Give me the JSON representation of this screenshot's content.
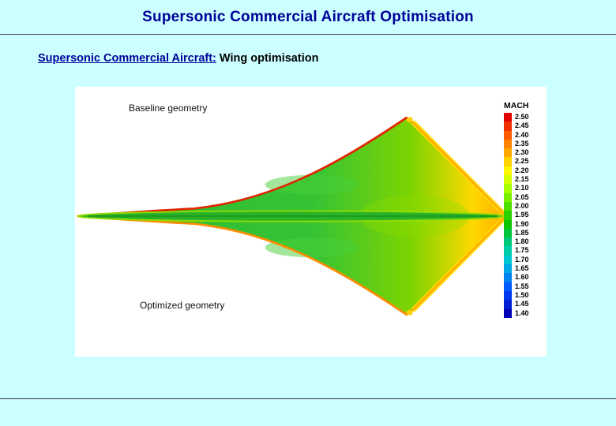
{
  "slide": {
    "title": "Supersonic Commercial Aircraft Optimisation",
    "subtitle": {
      "lead": "Supersonic Commercial Aircraft:",
      "rest": " Wing optimisation"
    }
  },
  "figure": {
    "baseline_label": "Baseline geometry",
    "optimized_label": "Optimized geometry",
    "legend": {
      "title": "MACH",
      "entries": [
        {
          "value": "2.50",
          "color": "#e00000"
        },
        {
          "value": "2.45",
          "color": "#f03000"
        },
        {
          "value": "2.40",
          "color": "#ff5a00"
        },
        {
          "value": "2.35",
          "color": "#ff8200"
        },
        {
          "value": "2.30",
          "color": "#ffa800"
        },
        {
          "value": "2.25",
          "color": "#ffd200"
        },
        {
          "value": "2.20",
          "color": "#fff600"
        },
        {
          "value": "2.15",
          "color": "#d8ff00"
        },
        {
          "value": "2.10",
          "color": "#a8ff00"
        },
        {
          "value": "2.05",
          "color": "#78f000"
        },
        {
          "value": "2.00",
          "color": "#4ce000"
        },
        {
          "value": "1.95",
          "color": "#28d200"
        },
        {
          "value": "1.90",
          "color": "#0cc400"
        },
        {
          "value": "1.85",
          "color": "#00c43c"
        },
        {
          "value": "1.80",
          "color": "#00c878"
        },
        {
          "value": "1.75",
          "color": "#00ccaa"
        },
        {
          "value": "1.70",
          "color": "#00c8d2"
        },
        {
          "value": "1.65",
          "color": "#00a8e6"
        },
        {
          "value": "1.60",
          "color": "#0082f0"
        },
        {
          "value": "1.55",
          "color": "#005cff"
        },
        {
          "value": "1.50",
          "color": "#0038f0"
        },
        {
          "value": "1.45",
          "color": "#001ed2"
        },
        {
          "value": "1.40",
          "color": "#0000b4"
        }
      ]
    }
  },
  "colors": {
    "background": "#ccffff",
    "title_text": "#000099",
    "panel_background": "#ffffff"
  }
}
